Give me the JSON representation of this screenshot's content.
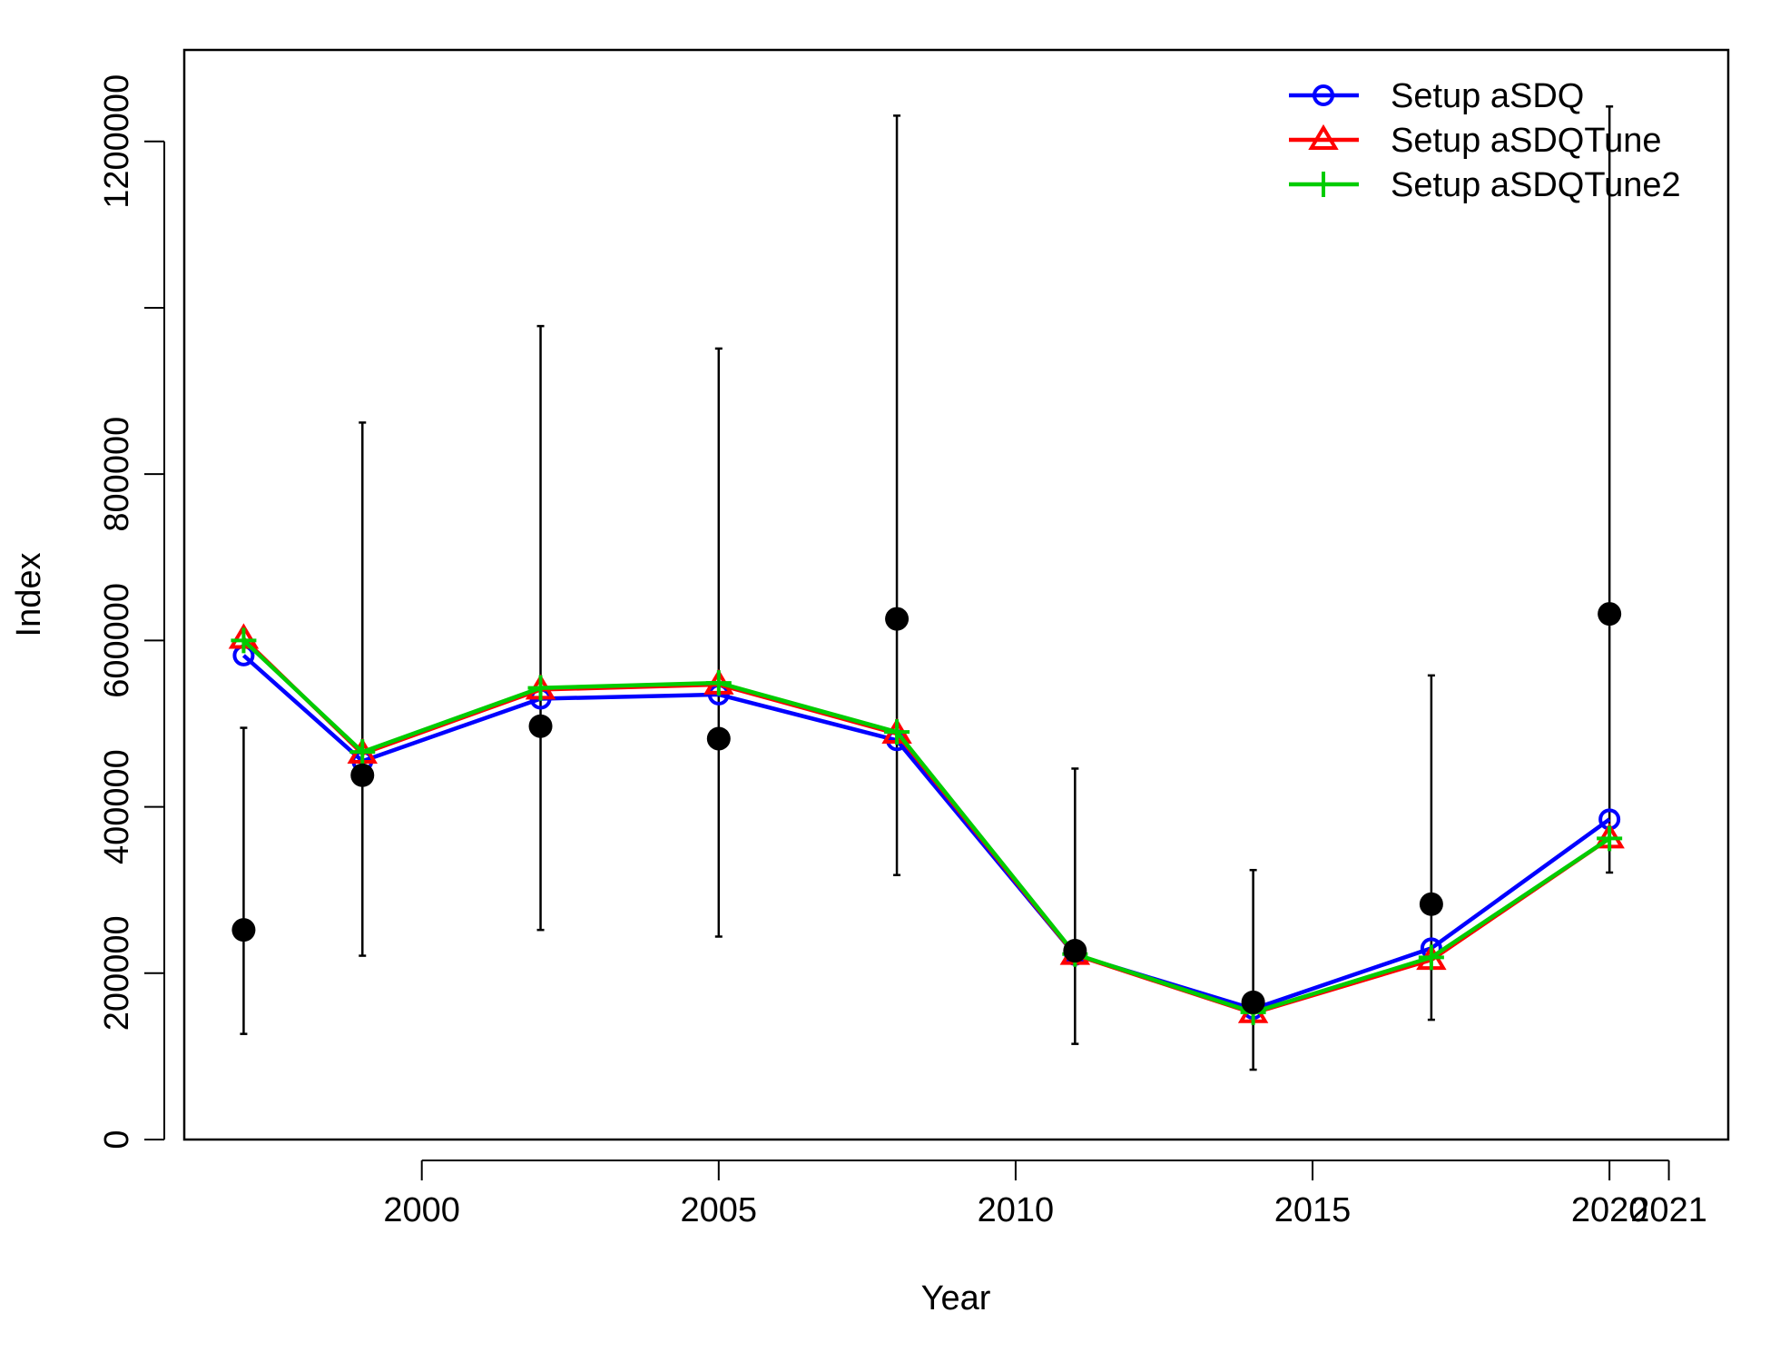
{
  "chart_data": {
    "type": "line",
    "title": "",
    "xlabel": "Year",
    "ylabel": "Index",
    "xlim": [
      1996,
      2022
    ],
    "ylim": [
      0,
      1310000
    ],
    "x_ticks": [
      2000,
      2005,
      2010,
      2015,
      2020,
      2021
    ],
    "y_ticks": [
      0,
      200000,
      400000,
      600000,
      800000,
      1000000,
      1200000
    ],
    "y_tick_labels": [
      "0",
      "200000",
      "400000",
      "600000",
      "800000",
      "",
      "1200000"
    ],
    "grid": false,
    "legend_position": "top-right",
    "observed": {
      "x": [
        1997,
        1999,
        2002,
        2005,
        2008,
        2011,
        2014,
        2017,
        2020
      ],
      "y": [
        252000,
        438000,
        497000,
        482000,
        626000,
        227000,
        165000,
        283000,
        632000
      ],
      "lower": [
        127000,
        221000,
        252000,
        244000,
        318000,
        115000,
        84000,
        144000,
        321000
      ],
      "upper": [
        495000,
        862000,
        978000,
        951000,
        1231000,
        446000,
        324000,
        558000,
        1242000
      ]
    },
    "series": [
      {
        "name": "Setup aSDQ",
        "color": "#0000ff",
        "marker": "circle",
        "x": [
          1997,
          1999,
          2002,
          2005,
          2008,
          2011,
          2014,
          2017,
          2020
        ],
        "y": [
          582000,
          455000,
          530000,
          535000,
          480000,
          222000,
          157000,
          230000,
          385000
        ]
      },
      {
        "name": "Setup aSDQTune",
        "color": "#ff0000",
        "marker": "triangle",
        "x": [
          1997,
          1999,
          2002,
          2005,
          2008,
          2011,
          2014,
          2017,
          2020
        ],
        "y": [
          602000,
          464000,
          541000,
          547000,
          488000,
          222000,
          152000,
          216000,
          362000
        ]
      },
      {
        "name": "Setup aSDQTune2",
        "color": "#00cc00",
        "marker": "plus",
        "x": [
          1997,
          1999,
          2002,
          2005,
          2008,
          2011,
          2014,
          2017,
          2020
        ],
        "y": [
          600000,
          466000,
          543000,
          549000,
          490000,
          223000,
          153000,
          219000,
          362000
        ]
      }
    ]
  }
}
